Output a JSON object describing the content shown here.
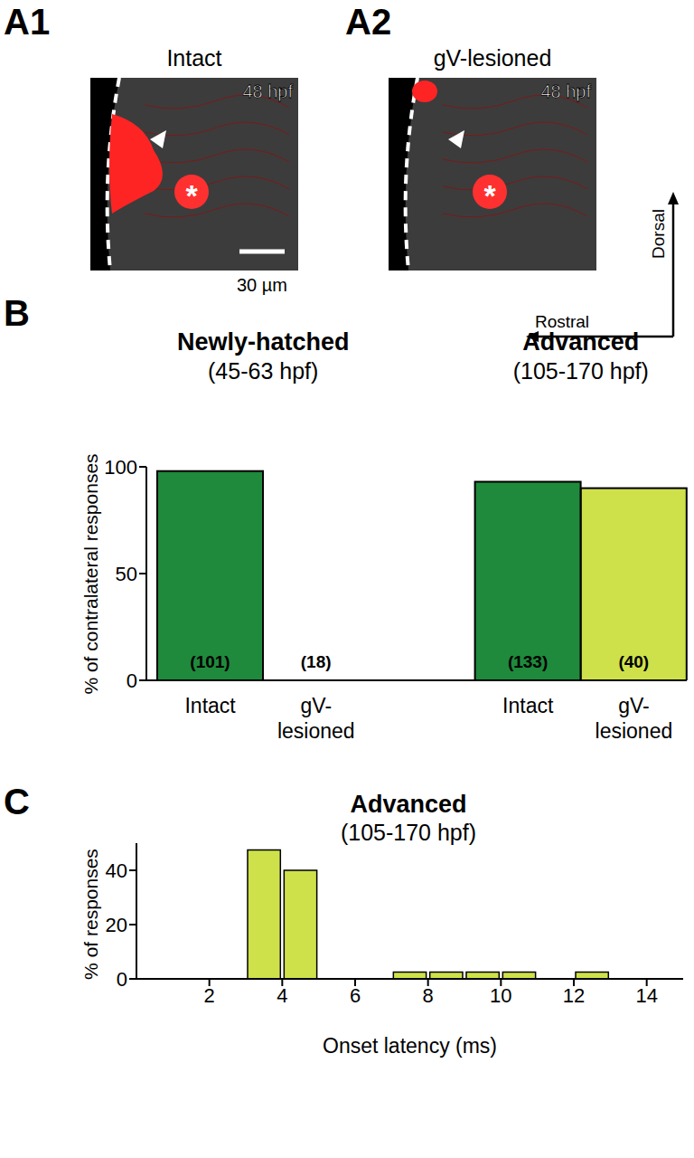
{
  "panels": [
    {
      "label": "A1",
      "title": "Intact",
      "timestamp": "48 hpf",
      "scale_bar": "30 µm",
      "asterisk": "*"
    },
    {
      "label": "A2",
      "title": "gV-lesioned",
      "timestamp": "48 hpf",
      "asterisk": "*"
    }
  ],
  "compass": {
    "up": "Dorsal",
    "left": "Rostral"
  },
  "chart_data": [
    {
      "panel": "B",
      "type": "bar",
      "y_label": "% of contralateral responses",
      "ylim": [
        0,
        100
      ],
      "yticks": [
        0,
        50,
        100
      ],
      "groups": [
        {
          "title": "Newly-hatched",
          "subtitle": "(45-63 hpf)",
          "categories": [
            "Intact",
            "gV-lesioned"
          ],
          "values": [
            98,
            0
          ],
          "counts": [
            "(101)",
            "(18)"
          ],
          "colors": [
            "#1f8a3c",
            "#cfe14a"
          ]
        },
        {
          "title": "Advanced",
          "subtitle": "(105-170 hpf)",
          "categories": [
            "Intact",
            "gV-lesioned"
          ],
          "values": [
            93,
            90
          ],
          "counts": [
            "(133)",
            "(40)"
          ],
          "colors": [
            "#1f8a3c",
            "#cfe14a"
          ]
        }
      ]
    },
    {
      "panel": "C",
      "type": "histogram",
      "title": "Advanced",
      "subtitle": "(105-170 hpf)",
      "bins": [
        3,
        4,
        5,
        6,
        7,
        8,
        9,
        10,
        11,
        12,
        13
      ],
      "values": [
        47.5,
        40,
        0,
        0,
        2.5,
        2.5,
        2.5,
        2.5,
        0,
        2.5
      ],
      "color": "#cfe14a",
      "xlim": [
        0,
        15
      ],
      "xticks": [
        2,
        4,
        6,
        8,
        10,
        12,
        14
      ],
      "ylim": [
        0,
        50
      ],
      "yticks": [
        0,
        20,
        40
      ],
      "x_label": "Onset latency (ms)",
      "y_label": "% of responses"
    }
  ]
}
